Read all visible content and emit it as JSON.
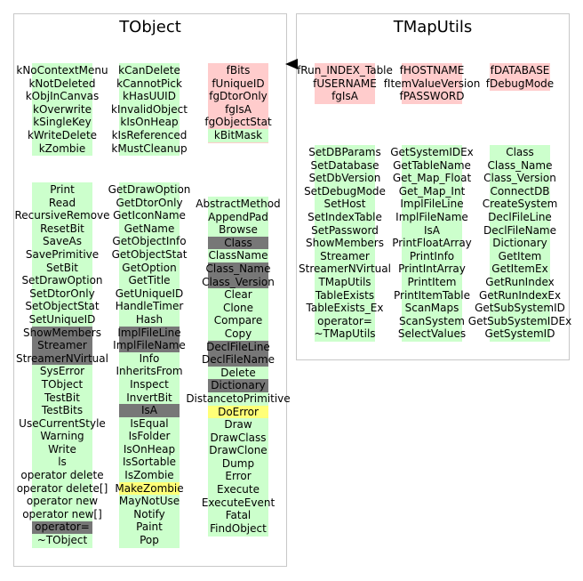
{
  "colors": {
    "normal": "#ccffcc",
    "pointer": "#ffcccc",
    "inherited": "#777777",
    "special": "#ffff77",
    "border": "#c8c8c8"
  },
  "tobject": {
    "title": "TObject",
    "enum_cols": [
      {
        "color": "normal",
        "items": [
          {
            "label": "kNoContextMenu"
          },
          {
            "label": "kNotDeleted"
          },
          {
            "label": "kObjInCanvas"
          },
          {
            "label": "kOverwrite"
          },
          {
            "label": "kSingleKey"
          },
          {
            "label": "kWriteDelete"
          },
          {
            "label": "kZombie"
          }
        ]
      },
      {
        "color": "normal",
        "items": [
          {
            "label": "kCanDelete"
          },
          {
            "label": "kCannotPick"
          },
          {
            "label": "kHasUUID"
          },
          {
            "label": "kInvalidObject"
          },
          {
            "label": "kIsOnHeap"
          },
          {
            "label": "kIsReferenced"
          },
          {
            "label": "kMustCleanup"
          }
        ]
      },
      {
        "color": "pointer",
        "items": [
          {
            "label": "fBits"
          },
          {
            "label": "fUniqueID"
          },
          {
            "label": "fgDtorOnly"
          },
          {
            "label": "fgIsA"
          },
          {
            "label": "fgObjectStat"
          },
          {
            "label": "kBitMask",
            "hl": "normal"
          }
        ]
      }
    ],
    "method_cols": [
      {
        "items": [
          {
            "label": "Print"
          },
          {
            "label": "Read"
          },
          {
            "label": "RecursiveRemove"
          },
          {
            "label": "ResetBit"
          },
          {
            "label": "SaveAs"
          },
          {
            "label": "SavePrimitive"
          },
          {
            "label": "SetBit"
          },
          {
            "label": "SetDrawOption"
          },
          {
            "label": "SetDtorOnly"
          },
          {
            "label": "SetObjectStat"
          },
          {
            "label": "SetUniqueID"
          },
          {
            "label": "ShowMembers",
            "hl": "inherited"
          },
          {
            "label": "Streamer",
            "hl": "inherited"
          },
          {
            "label": "StreamerNVirtual",
            "hl": "inherited"
          },
          {
            "label": "SysError"
          },
          {
            "label": "TObject"
          },
          {
            "label": "TestBit"
          },
          {
            "label": "TestBits"
          },
          {
            "label": "UseCurrentStyle"
          },
          {
            "label": "Warning"
          },
          {
            "label": "Write"
          },
          {
            "label": "ls"
          },
          {
            "label": "operator delete"
          },
          {
            "label": "operator delete[]"
          },
          {
            "label": "operator new"
          },
          {
            "label": "operator new[]"
          },
          {
            "label": "operator=",
            "hl": "inherited"
          },
          {
            "label": "~TObject"
          }
        ]
      },
      {
        "items": [
          {
            "label": "GetDrawOption"
          },
          {
            "label": "GetDtorOnly"
          },
          {
            "label": "GetIconName"
          },
          {
            "label": "GetName"
          },
          {
            "label": "GetObjectInfo"
          },
          {
            "label": "GetObjectStat"
          },
          {
            "label": "GetOption"
          },
          {
            "label": "GetTitle"
          },
          {
            "label": "GetUniqueID"
          },
          {
            "label": "HandleTimer"
          },
          {
            "label": "Hash"
          },
          {
            "label": "ImplFileLine",
            "hl": "inherited"
          },
          {
            "label": "ImplFileName",
            "hl": "inherited"
          },
          {
            "label": "Info"
          },
          {
            "label": "InheritsFrom"
          },
          {
            "label": "Inspect"
          },
          {
            "label": "InvertBit"
          },
          {
            "label": "IsA",
            "hl": "inherited"
          },
          {
            "label": "IsEqual"
          },
          {
            "label": "IsFolder"
          },
          {
            "label": "IsOnHeap"
          },
          {
            "label": "IsSortable"
          },
          {
            "label": "IsZombie"
          },
          {
            "label": "MakeZombie",
            "hl": "special"
          },
          {
            "label": "MayNotUse"
          },
          {
            "label": "Notify"
          },
          {
            "label": "Paint"
          },
          {
            "label": "Pop"
          }
        ]
      },
      {
        "items": [
          {
            "label": "AbstractMethod"
          },
          {
            "label": "AppendPad"
          },
          {
            "label": "Browse"
          },
          {
            "label": "Class",
            "hl": "inherited"
          },
          {
            "label": "ClassName"
          },
          {
            "label": "Class_Name",
            "hl": "inherited"
          },
          {
            "label": "Class_Version",
            "hl": "inherited"
          },
          {
            "label": "Clear"
          },
          {
            "label": "Clone"
          },
          {
            "label": "Compare"
          },
          {
            "label": "Copy"
          },
          {
            "label": "DeclFileLine",
            "hl": "inherited"
          },
          {
            "label": "DeclFileName",
            "hl": "inherited"
          },
          {
            "label": "Delete"
          },
          {
            "label": "Dictionary",
            "hl": "inherited"
          },
          {
            "label": "DistancetoPrimitive"
          },
          {
            "label": "DoError",
            "hl": "special"
          },
          {
            "label": "Draw"
          },
          {
            "label": "DrawClass"
          },
          {
            "label": "DrawClone"
          },
          {
            "label": "Dump"
          },
          {
            "label": "Error"
          },
          {
            "label": "Execute"
          },
          {
            "label": "ExecuteEvent"
          },
          {
            "label": "Fatal"
          },
          {
            "label": "FindObject"
          }
        ]
      }
    ]
  },
  "tmaputils": {
    "title": "TMapUtils",
    "member_cols": [
      {
        "color": "pointer",
        "items": [
          {
            "label": "fRun_INDEX_Table"
          },
          {
            "label": "fUSERNAME"
          },
          {
            "label": "fgIsA"
          }
        ]
      },
      {
        "color": "pointer",
        "items": [
          {
            "label": "fHOSTNAME"
          },
          {
            "label": "fItemValueVersion"
          },
          {
            "label": "fPASSWORD"
          }
        ]
      },
      {
        "color": "pointer",
        "items": [
          {
            "label": "fDATABASE"
          },
          {
            "label": "fDebugMode"
          }
        ]
      }
    ],
    "method_cols": [
      {
        "items": [
          {
            "label": "SetDBParams"
          },
          {
            "label": "SetDatabase"
          },
          {
            "label": "SetDbVersion"
          },
          {
            "label": "SetDebugMode"
          },
          {
            "label": "SetHost"
          },
          {
            "label": "SetIndexTable"
          },
          {
            "label": "SetPassword"
          },
          {
            "label": "ShowMembers"
          },
          {
            "label": "Streamer"
          },
          {
            "label": "StreamerNVirtual"
          },
          {
            "label": "TMapUtils"
          },
          {
            "label": "TableExists"
          },
          {
            "label": "TableExists_Ex"
          },
          {
            "label": "operator="
          },
          {
            "label": "~TMapUtils"
          }
        ]
      },
      {
        "items": [
          {
            "label": "GetSystemIDEx"
          },
          {
            "label": "GetTableName"
          },
          {
            "label": "Get_Map_Float"
          },
          {
            "label": "Get_Map_Int"
          },
          {
            "label": "ImplFileLine"
          },
          {
            "label": "ImplFileName"
          },
          {
            "label": "IsA"
          },
          {
            "label": "PrintFloatArray"
          },
          {
            "label": "PrintInfo"
          },
          {
            "label": "PrintIntArray"
          },
          {
            "label": "PrintItem"
          },
          {
            "label": "PrintItemTable"
          },
          {
            "label": "ScanMaps"
          },
          {
            "label": "ScanSystem"
          },
          {
            "label": "SelectValues"
          }
        ]
      },
      {
        "items": [
          {
            "label": "Class"
          },
          {
            "label": "Class_Name"
          },
          {
            "label": "Class_Version"
          },
          {
            "label": "ConnectDB"
          },
          {
            "label": "CreateSystem"
          },
          {
            "label": "DeclFileLine"
          },
          {
            "label": "DeclFileName"
          },
          {
            "label": "Dictionary"
          },
          {
            "label": "GetItem"
          },
          {
            "label": "GetItemEx"
          },
          {
            "label": "GetRunIndex"
          },
          {
            "label": "GetRunIndexEx"
          },
          {
            "label": "GetSubSystemID"
          },
          {
            "label": "GetSubSystemIDEx"
          },
          {
            "label": "GetSystemID"
          }
        ]
      }
    ]
  }
}
